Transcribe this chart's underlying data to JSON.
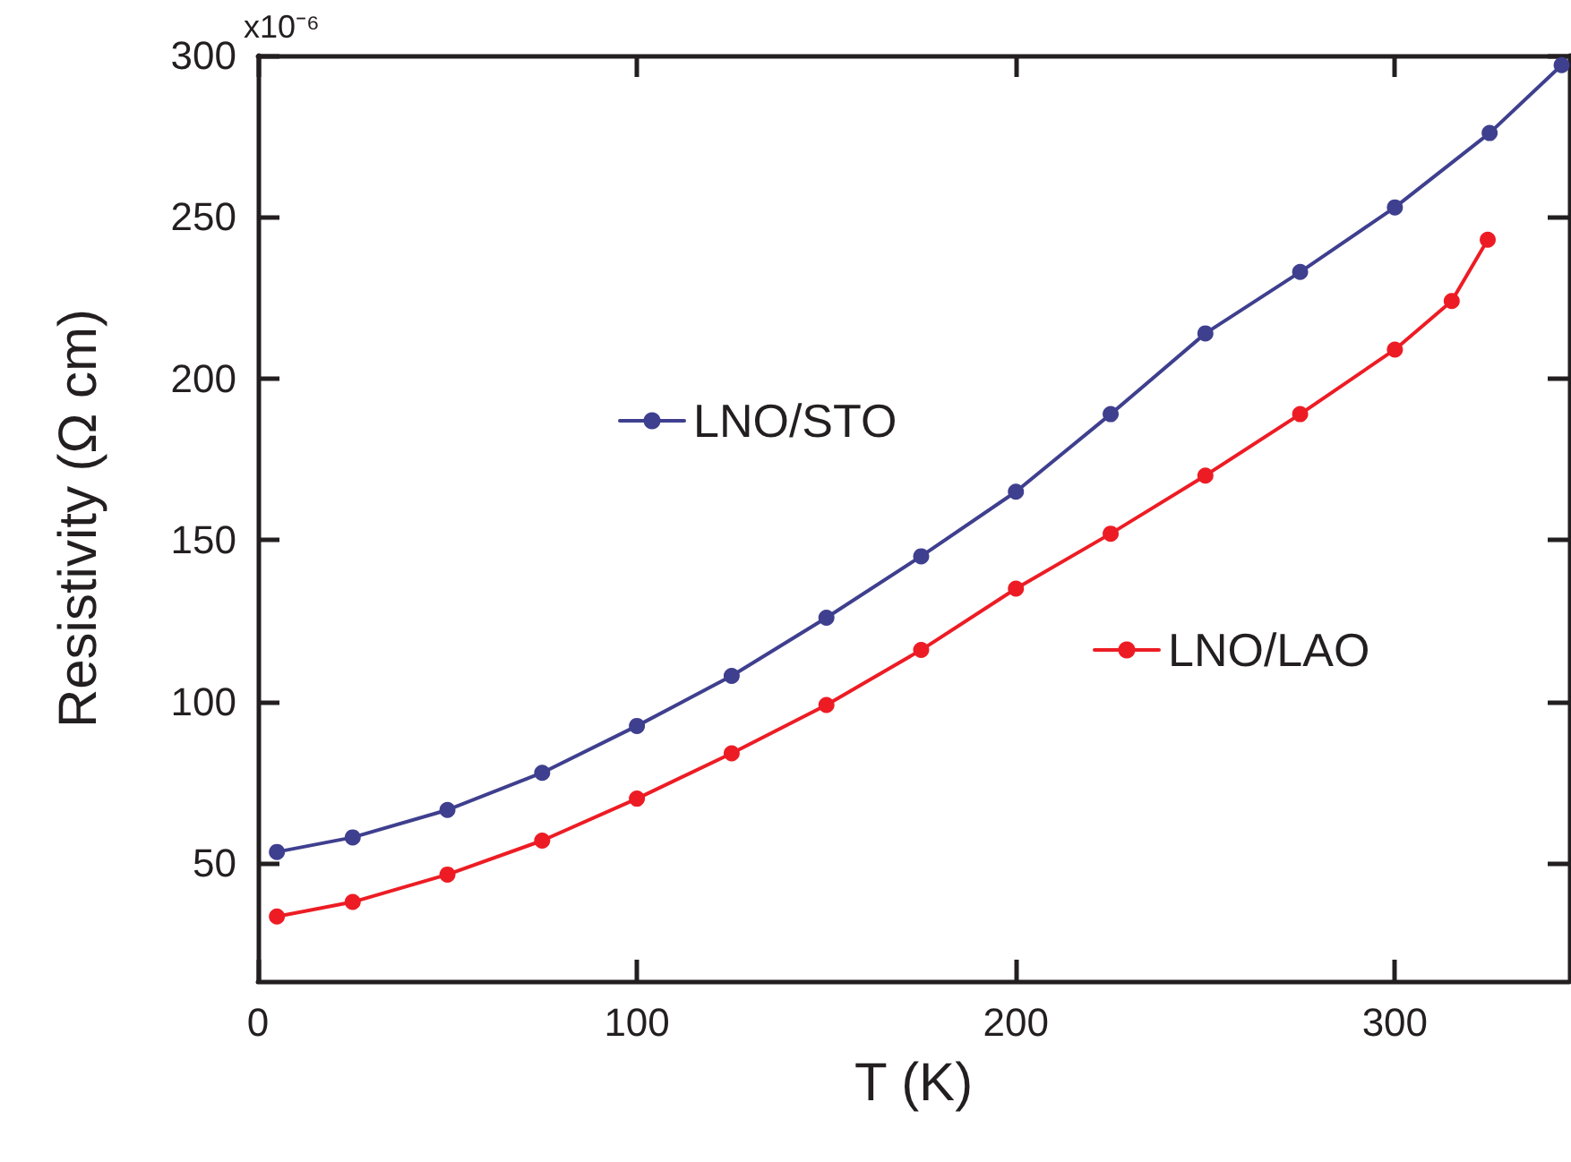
{
  "chart_data": {
    "type": "line",
    "xlabel": "T (K)",
    "ylabel": "Resistivity (Ω cm)",
    "xlim": [
      0,
      346
    ],
    "xticks": [
      0,
      100,
      200,
      300
    ],
    "ylim": [
      13.5,
      300
    ],
    "yticks": [
      50,
      100,
      150,
      200,
      250,
      300
    ],
    "annotations": [
      "x10⁻⁶"
    ],
    "grid": false,
    "marker": "circle",
    "line_style": "solid",
    "legend": "center",
    "series": [
      {
        "name": "LNO/STO",
        "color": "#3f3f8f",
        "x": [
          5,
          25,
          50,
          75,
          100,
          125,
          150,
          175,
          200,
          225,
          250,
          275,
          300,
          325,
          344
        ],
        "values": [
          53.5,
          58,
          66.5,
          78,
          92.5,
          108,
          126,
          145,
          165,
          189,
          214,
          233,
          253,
          276,
          297
        ]
      },
      {
        "name": "LNO/LAO",
        "color": "#ed1c24",
        "x": [
          5,
          25,
          50,
          75,
          100,
          125,
          150,
          175,
          200,
          225,
          250,
          275,
          300,
          315,
          324.5
        ],
        "values": [
          33.5,
          38,
          46.5,
          57,
          70,
          84,
          99,
          116,
          135,
          152,
          170,
          189,
          209,
          224,
          243
        ]
      }
    ]
  }
}
